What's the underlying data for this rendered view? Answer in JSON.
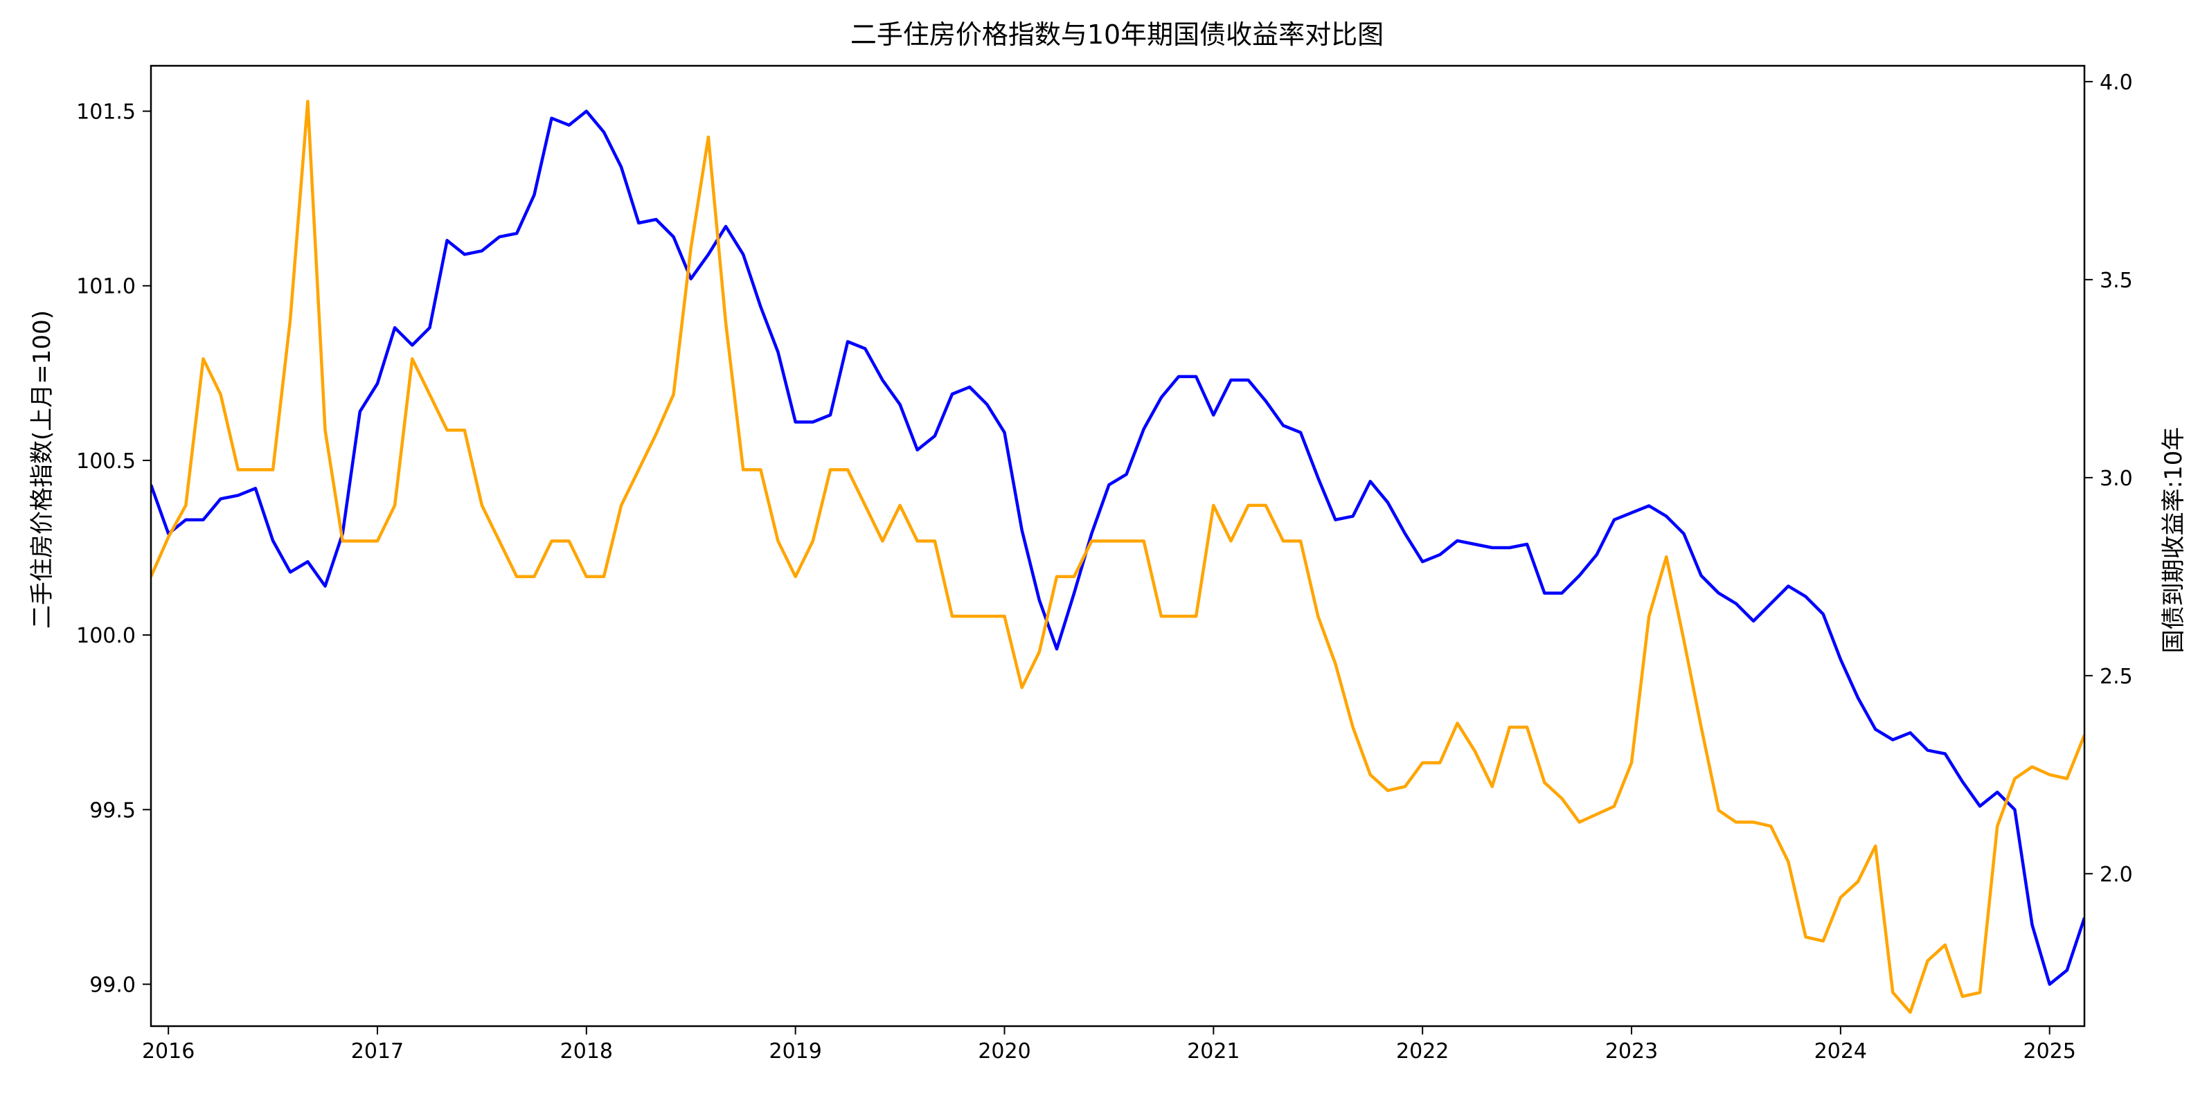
{
  "chart_data": {
    "type": "line",
    "title": "二手住房价格指数与10年期国债收益率对比图",
    "xlabel": "",
    "ylabel": "二手住房价格指数(上月=100)",
    "y2label": "国债到期收益率:10年",
    "xlim": [
      "2015-12",
      "2025-03"
    ],
    "ylim": [
      98.88,
      101.63
    ],
    "y2lim": [
      1.615,
      4.04
    ],
    "x_ticks": [
      "2016",
      "2017",
      "2018",
      "2019",
      "2020",
      "2021",
      "2022",
      "2023",
      "2024",
      "2025"
    ],
    "y_ticks": [
      "99.0",
      "99.5",
      "100.0",
      "100.5",
      "101.0",
      "101.5"
    ],
    "y2_ticks": [
      "2.0",
      "2.5",
      "3.0",
      "3.5",
      "4.0"
    ],
    "grid": false,
    "legend": "none",
    "x": [
      "2015-12",
      "2016-01",
      "2016-02",
      "2016-03",
      "2016-04",
      "2016-05",
      "2016-06",
      "2016-07",
      "2016-08",
      "2016-09",
      "2016-10",
      "2016-11",
      "2016-12",
      "2017-01",
      "2017-02",
      "2017-03",
      "2017-04",
      "2017-05",
      "2017-06",
      "2017-07",
      "2017-08",
      "2017-09",
      "2017-10",
      "2017-11",
      "2017-12",
      "2018-01",
      "2018-02",
      "2018-03",
      "2018-04",
      "2018-05",
      "2018-06",
      "2018-07",
      "2018-08",
      "2018-09",
      "2018-10",
      "2018-11",
      "2018-12",
      "2019-01",
      "2019-02",
      "2019-03",
      "2019-04",
      "2019-05",
      "2019-06",
      "2019-07",
      "2019-08",
      "2019-09",
      "2019-10",
      "2019-11",
      "2019-12",
      "2020-01",
      "2020-02",
      "2020-03",
      "2020-04",
      "2020-05",
      "2020-06",
      "2020-07",
      "2020-08",
      "2020-09",
      "2020-10",
      "2020-11",
      "2020-12",
      "2021-01",
      "2021-02",
      "2021-03",
      "2021-04",
      "2021-05",
      "2021-06",
      "2021-07",
      "2021-08",
      "2021-09",
      "2021-10",
      "2021-11",
      "2021-12",
      "2022-01",
      "2022-02",
      "2022-03",
      "2022-04",
      "2022-05",
      "2022-06",
      "2022-07",
      "2022-08",
      "2022-09",
      "2022-10",
      "2022-11",
      "2022-12",
      "2023-01",
      "2023-02",
      "2023-03",
      "2023-04",
      "2023-05",
      "2023-06",
      "2023-07",
      "2023-08",
      "2023-09",
      "2023-10",
      "2023-11",
      "2023-12",
      "2024-01",
      "2024-02",
      "2024-03",
      "2024-04",
      "2024-05",
      "2024-06",
      "2024-07",
      "2024-08",
      "2024-09",
      "2024-10",
      "2024-11",
      "2024-12",
      "2025-01",
      "2025-02",
      "2025-03"
    ],
    "series": [
      {
        "axis": "left",
        "color": "#0000FF",
        "values": [
          100.43,
          100.29,
          100.33,
          100.33,
          100.39,
          100.4,
          100.42,
          100.27,
          100.18,
          100.21,
          100.14,
          100.29,
          100.64,
          100.72,
          100.88,
          100.83,
          100.88,
          101.13,
          101.09,
          101.1,
          101.14,
          101.15,
          101.26,
          101.48,
          101.46,
          101.5,
          101.44,
          101.34,
          101.18,
          101.19,
          101.14,
          101.02,
          101.09,
          101.17,
          101.09,
          100.94,
          100.81,
          100.61,
          100.61,
          100.63,
          100.84,
          100.82,
          100.73,
          100.66,
          100.53,
          100.57,
          100.69,
          100.71,
          100.66,
          100.58,
          100.3,
          100.1,
          99.96,
          100.12,
          100.29,
          100.43,
          100.46,
          100.59,
          100.68,
          100.74,
          100.74,
          100.63,
          100.73,
          100.73,
          100.67,
          100.6,
          100.58,
          100.45,
          100.33,
          100.34,
          100.44,
          100.38,
          100.29,
          100.21,
          100.23,
          100.27,
          100.26,
          100.25,
          100.25,
          100.26,
          100.12,
          100.12,
          100.17,
          100.23,
          100.33,
          100.35,
          100.37,
          100.34,
          100.29,
          100.17,
          100.12,
          100.09,
          100.04,
          100.09,
          100.14,
          100.11,
          100.06,
          99.93,
          99.82,
          99.73,
          99.7,
          99.72,
          99.67,
          99.66,
          99.58,
          99.51,
          99.55,
          99.5,
          99.17,
          99.0,
          99.04,
          99.19
        ]
      },
      {
        "axis": "right",
        "color": "#FFA500",
        "values": [
          2.75,
          2.85,
          2.93,
          3.3,
          3.21,
          3.02,
          3.02,
          3.02,
          3.4,
          3.95,
          3.12,
          2.84,
          2.84,
          2.84,
          2.93,
          3.3,
          3.21,
          3.12,
          3.12,
          2.93,
          2.84,
          2.75,
          2.75,
          2.84,
          2.84,
          2.75,
          2.75,
          2.93,
          3.02,
          3.11,
          3.21,
          3.58,
          3.86,
          3.39,
          3.02,
          3.02,
          2.84,
          2.75,
          2.84,
          3.02,
          3.02,
          2.93,
          2.84,
          2.93,
          2.84,
          2.84,
          2.65,
          2.65,
          2.65,
          2.65,
          2.47,
          2.56,
          2.75,
          2.75,
          2.84,
          2.84,
          2.84,
          2.84,
          2.65,
          2.65,
          2.65,
          2.93,
          2.84,
          2.93,
          2.93,
          2.84,
          2.84,
          2.65,
          2.53,
          2.37,
          2.25,
          2.21,
          2.22,
          2.28,
          2.28,
          2.38,
          2.31,
          2.22,
          2.37,
          2.37,
          2.23,
          2.19,
          2.13,
          2.15,
          2.17,
          2.28,
          2.65,
          2.8,
          2.59,
          2.37,
          2.16,
          2.13,
          2.13,
          2.12,
          2.03,
          1.84,
          1.83,
          1.94,
          1.98,
          2.07,
          1.7,
          1.65,
          1.78,
          1.82,
          1.69,
          1.7,
          2.12,
          2.24,
          2.27,
          2.25,
          2.24,
          2.35
        ]
      }
    ]
  }
}
